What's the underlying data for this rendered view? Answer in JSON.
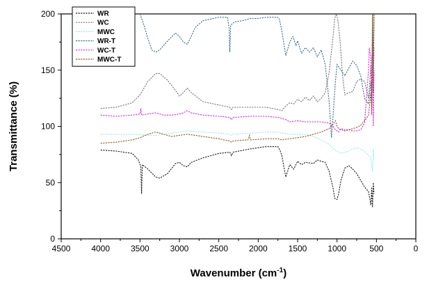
{
  "chart_data": {
    "type": "line",
    "title": "",
    "xlabel": "Wavenumber (cm",
    "xlabel_sup": "-1",
    "xlabel_tail": ")",
    "ylabel": "Transmittance (%)",
    "xlim": [
      4500,
      0
    ],
    "ylim": [
      0,
      200
    ],
    "x_reversed": true,
    "x_ticks": [
      4500,
      4000,
      3500,
      3000,
      2500,
      2000,
      1500,
      1000,
      500,
      0
    ],
    "y_ticks": [
      0,
      50,
      100,
      150,
      200
    ],
    "grid": false,
    "legend_placement": "top-left",
    "series": [
      {
        "name": "WR",
        "color": "#1a1a1a",
        "points": [
          [
            4000,
            79
          ],
          [
            3800,
            78
          ],
          [
            3600,
            76
          ],
          [
            3520,
            70
          ],
          [
            3490,
            64
          ],
          [
            3480,
            40
          ],
          [
            3470,
            66
          ],
          [
            3400,
            62
          ],
          [
            3300,
            55
          ],
          [
            3250,
            54
          ],
          [
            3150,
            58
          ],
          [
            3050,
            67
          ],
          [
            3000,
            68
          ],
          [
            2950,
            65
          ],
          [
            2900,
            64
          ],
          [
            2850,
            68
          ],
          [
            2700,
            72
          ],
          [
            2500,
            76
          ],
          [
            2360,
            77
          ],
          [
            2340,
            74
          ],
          [
            2320,
            77
          ],
          [
            2100,
            80
          ],
          [
            1900,
            82
          ],
          [
            1750,
            82
          ],
          [
            1720,
            78
          ],
          [
            1700,
            74
          ],
          [
            1650,
            55
          ],
          [
            1600,
            66
          ],
          [
            1550,
            62
          ],
          [
            1500,
            69
          ],
          [
            1450,
            66
          ],
          [
            1400,
            68
          ],
          [
            1300,
            67
          ],
          [
            1250,
            70
          ],
          [
            1200,
            69
          ],
          [
            1150,
            68
          ],
          [
            1100,
            60
          ],
          [
            1050,
            45
          ],
          [
            1030,
            36
          ],
          [
            1000,
            35
          ],
          [
            980,
            40
          ],
          [
            950,
            52
          ],
          [
            900,
            63
          ],
          [
            850,
            65
          ],
          [
            800,
            62
          ],
          [
            750,
            58
          ],
          [
            700,
            52
          ],
          [
            650,
            46
          ],
          [
            600,
            42
          ],
          [
            570,
            30
          ],
          [
            560,
            46
          ],
          [
            550,
            28
          ],
          [
            540,
            50
          ],
          [
            530,
            40
          ]
        ]
      },
      {
        "name": "WC",
        "color": "#777777",
        "points": [
          [
            4000,
            116
          ],
          [
            3800,
            117
          ],
          [
            3600,
            121
          ],
          [
            3500,
            128
          ],
          [
            3400,
            140
          ],
          [
            3300,
            147
          ],
          [
            3250,
            147
          ],
          [
            3150,
            141
          ],
          [
            3050,
            132
          ],
          [
            3000,
            127
          ],
          [
            2950,
            130
          ],
          [
            2900,
            134
          ],
          [
            2850,
            130
          ],
          [
            2700,
            122
          ],
          [
            2500,
            119
          ],
          [
            2360,
            117
          ],
          [
            2340,
            115
          ],
          [
            2320,
            117
          ],
          [
            2100,
            117
          ],
          [
            1900,
            117
          ],
          [
            1750,
            115
          ],
          [
            1700,
            114
          ],
          [
            1650,
            118
          ],
          [
            1600,
            121
          ],
          [
            1550,
            120
          ],
          [
            1500,
            124
          ],
          [
            1450,
            122
          ],
          [
            1400,
            126
          ],
          [
            1350,
            123
          ],
          [
            1300,
            127
          ],
          [
            1250,
            122
          ],
          [
            1200,
            125
          ],
          [
            1150,
            130
          ],
          [
            1100,
            148
          ],
          [
            1050,
            180
          ],
          [
            1030,
            196
          ],
          [
            1010,
            200
          ],
          [
            990,
            195
          ],
          [
            960,
            175
          ],
          [
            930,
            145
          ],
          [
            900,
            128
          ],
          [
            850,
            130
          ],
          [
            800,
            131
          ],
          [
            750,
            140
          ],
          [
            700,
            142
          ],
          [
            650,
            140
          ],
          [
            600,
            125
          ],
          [
            570,
            155
          ],
          [
            560,
            120
          ],
          [
            550,
            175
          ],
          [
            540,
            140
          ],
          [
            530,
            170
          ]
        ]
      },
      {
        "name": "MWC",
        "color": "#9fe8ee",
        "points": [
          [
            4000,
            93
          ],
          [
            3800,
            93
          ],
          [
            3600,
            93
          ],
          [
            3400,
            92
          ],
          [
            3300,
            92
          ],
          [
            3200,
            93
          ],
          [
            3000,
            95
          ],
          [
            2900,
            96
          ],
          [
            2700,
            95
          ],
          [
            2500,
            94
          ],
          [
            2360,
            93
          ],
          [
            2340,
            92
          ],
          [
            2320,
            93
          ],
          [
            2100,
            94
          ],
          [
            1900,
            95
          ],
          [
            1750,
            95
          ],
          [
            1700,
            94
          ],
          [
            1600,
            93
          ],
          [
            1500,
            93
          ],
          [
            1400,
            93
          ],
          [
            1300,
            91
          ],
          [
            1200,
            88
          ],
          [
            1100,
            84
          ],
          [
            1050,
            80
          ],
          [
            1000,
            78
          ],
          [
            950,
            76
          ],
          [
            900,
            77
          ],
          [
            850,
            78
          ],
          [
            800,
            80
          ],
          [
            750,
            81
          ],
          [
            700,
            80
          ],
          [
            650,
            78
          ],
          [
            600,
            74
          ],
          [
            570,
            72
          ],
          [
            550,
            60
          ],
          [
            540,
            80
          ],
          [
            530,
            70
          ]
        ]
      },
      {
        "name": "WR-T",
        "color": "#3d6f8a",
        "points": [
          [
            3500,
            200
          ],
          [
            3450,
            190
          ],
          [
            3400,
            178
          ],
          [
            3350,
            168
          ],
          [
            3300,
            166
          ],
          [
            3250,
            168
          ],
          [
            3150,
            176
          ],
          [
            3050,
            183
          ],
          [
            3000,
            180
          ],
          [
            2950,
            175
          ],
          [
            2900,
            173
          ],
          [
            2850,
            180
          ],
          [
            2800,
            188
          ],
          [
            2700,
            194
          ],
          [
            2500,
            197
          ],
          [
            2390,
            197
          ],
          [
            2370,
            188
          ],
          [
            2360,
            166
          ],
          [
            2350,
            190
          ],
          [
            2300,
            193
          ],
          [
            2200,
            194
          ],
          [
            2100,
            196
          ],
          [
            2000,
            196
          ],
          [
            1900,
            197
          ],
          [
            1800,
            197
          ],
          [
            1750,
            197
          ],
          [
            1730,
            195
          ],
          [
            1700,
            185
          ],
          [
            1650,
            163
          ],
          [
            1600,
            175
          ],
          [
            1560,
            180
          ],
          [
            1520,
            172
          ],
          [
            1500,
            176
          ],
          [
            1450,
            165
          ],
          [
            1400,
            170
          ],
          [
            1350,
            166
          ],
          [
            1300,
            170
          ],
          [
            1250,
            162
          ],
          [
            1200,
            168
          ],
          [
            1150,
            155
          ],
          [
            1100,
            122
          ],
          [
            1070,
            90
          ],
          [
            1050,
            110
          ],
          [
            1020,
            140
          ],
          [
            1000,
            155
          ],
          [
            950,
            150
          ],
          [
            900,
            145
          ],
          [
            850,
            152
          ],
          [
            800,
            158
          ],
          [
            750,
            154
          ],
          [
            700,
            145
          ],
          [
            650,
            125
          ],
          [
            600,
            120
          ],
          [
            570,
            140
          ],
          [
            560,
            120
          ],
          [
            550,
            200
          ],
          [
            540,
            150
          ],
          [
            530,
            200
          ]
        ]
      },
      {
        "name": "WC-T",
        "color": "#e020e0",
        "points": [
          [
            4000,
            110
          ],
          [
            3800,
            109
          ],
          [
            3600,
            110
          ],
          [
            3500,
            111
          ],
          [
            3490,
            116
          ],
          [
            3480,
            110
          ],
          [
            3400,
            111
          ],
          [
            3300,
            112
          ],
          [
            3200,
            110
          ],
          [
            3100,
            110
          ],
          [
            3000,
            111
          ],
          [
            2950,
            112
          ],
          [
            2900,
            114
          ],
          [
            2850,
            112
          ],
          [
            2700,
            110
          ],
          [
            2500,
            109
          ],
          [
            2360,
            108
          ],
          [
            2340,
            106
          ],
          [
            2320,
            108
          ],
          [
            2100,
            109
          ],
          [
            1900,
            109
          ],
          [
            1750,
            108
          ],
          [
            1700,
            107
          ],
          [
            1650,
            106
          ],
          [
            1600,
            104
          ],
          [
            1500,
            105
          ],
          [
            1400,
            104
          ],
          [
            1300,
            104
          ],
          [
            1200,
            104
          ],
          [
            1100,
            103
          ],
          [
            1050,
            100
          ],
          [
            1020,
            97
          ],
          [
            1000,
            96
          ],
          [
            980,
            95
          ],
          [
            950,
            98
          ],
          [
            900,
            97
          ],
          [
            850,
            97
          ],
          [
            800,
            96
          ],
          [
            750,
            96
          ],
          [
            700,
            97
          ],
          [
            650,
            103
          ],
          [
            600,
            150
          ],
          [
            590,
            170
          ],
          [
            570,
            160
          ],
          [
            560,
            110
          ],
          [
            550,
            175
          ],
          [
            540,
            100
          ],
          [
            530,
            150
          ]
        ]
      },
      {
        "name": "MWC-T",
        "color": "#8a5a1e",
        "points": [
          [
            4000,
            85
          ],
          [
            3800,
            86
          ],
          [
            3600,
            88
          ],
          [
            3500,
            90
          ],
          [
            3400,
            93
          ],
          [
            3300,
            95
          ],
          [
            3200,
            93
          ],
          [
            3100,
            91
          ],
          [
            3000,
            92
          ],
          [
            2900,
            93
          ],
          [
            2700,
            91
          ],
          [
            2500,
            89
          ],
          [
            2360,
            87
          ],
          [
            2340,
            86
          ],
          [
            2320,
            87
          ],
          [
            2150,
            88
          ],
          [
            2130,
            88
          ],
          [
            2110,
            92
          ],
          [
            2100,
            88
          ],
          [
            1900,
            89
          ],
          [
            1750,
            89
          ],
          [
            1700,
            88
          ],
          [
            1600,
            89
          ],
          [
            1500,
            90
          ],
          [
            1400,
            91
          ],
          [
            1300,
            93
          ],
          [
            1200,
            95
          ],
          [
            1100,
            98
          ],
          [
            1050,
            102
          ],
          [
            1020,
            105
          ],
          [
            1000,
            100
          ],
          [
            980,
            98
          ],
          [
            950,
            97
          ],
          [
            900,
            96
          ],
          [
            850,
            97
          ],
          [
            800,
            98
          ],
          [
            750,
            99
          ],
          [
            700,
            101
          ],
          [
            650,
            105
          ],
          [
            600,
            110
          ],
          [
            570,
            130
          ],
          [
            560,
            115
          ],
          [
            550,
            200
          ],
          [
            540,
            130
          ],
          [
            530,
            200
          ]
        ]
      }
    ]
  }
}
